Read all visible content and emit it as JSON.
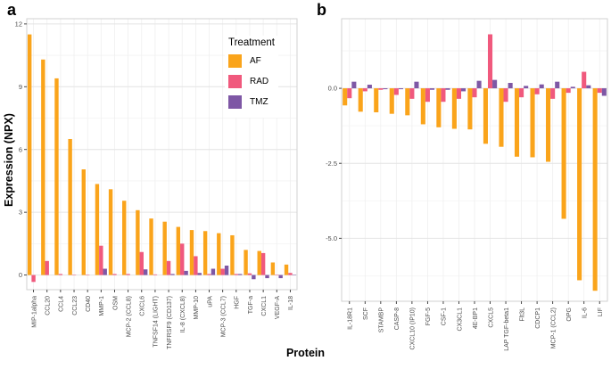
{
  "figure": {
    "panel_a_label": "a",
    "panel_b_label": "b",
    "y_axis_title": "Expression (NPX)",
    "x_axis_title": "Protein"
  },
  "legend": {
    "title": "Treatment",
    "items": [
      {
        "label": "AF",
        "color": "#FAA41B"
      },
      {
        "label": "RAD",
        "color": "#F0597D"
      },
      {
        "label": "TMZ",
        "color": "#7E57A5"
      }
    ]
  },
  "chart_data": [
    {
      "type": "bar",
      "panel": "a",
      "title": "",
      "xlabel": "Protein",
      "ylabel": "Expression (NPX)",
      "ylim": [
        -0.7,
        12.25
      ],
      "yticks": [
        0,
        3,
        6,
        9,
        12
      ],
      "ytick_labels": [
        "0",
        "3",
        "6",
        "9",
        "12"
      ],
      "grid": true,
      "legend_position": "inside-top-right",
      "categories": [
        "MIP-1alpha",
        "CCL20",
        "CCL4",
        "CCL23",
        "CD40",
        "MMP-1",
        "OSM",
        "MCP-2 (CCL8)",
        "CXCL6",
        "TNFSF14 (LIGHT)",
        "TNFRSF9 (CD137)",
        "IL-8 (CXCL8)",
        "MMP-10",
        "uPA",
        "MCP-3 (CCL7)",
        "HGF",
        "TGF-a",
        "CXCL1",
        "VEGF-A",
        "IL-18"
      ],
      "series": [
        {
          "name": "AF",
          "color": "#FAA41B",
          "values": [
            11.5,
            10.3,
            9.4,
            6.5,
            5.05,
            4.35,
            4.1,
            3.55,
            3.1,
            2.7,
            2.55,
            2.3,
            2.15,
            2.1,
            2.0,
            1.9,
            1.2,
            1.15,
            0.6,
            0.5
          ]
        },
        {
          "name": "RAD",
          "color": "#F0597D",
          "values": [
            -0.33,
            0.67,
            0.05,
            0.02,
            0.02,
            1.4,
            0.05,
            0.05,
            1.1,
            0.03,
            0.67,
            1.5,
            0.9,
            0.05,
            0.3,
            0.05,
            0.08,
            1.05,
            0.02,
            0.1
          ]
        },
        {
          "name": "TMZ",
          "color": "#7E57A5",
          "values": [
            0,
            0,
            0,
            0,
            0,
            0.3,
            0,
            0,
            0.27,
            0,
            0.05,
            0.2,
            0.1,
            0.3,
            0.45,
            0.05,
            -0.2,
            -0.15,
            -0.15,
            0.02
          ]
        }
      ]
    },
    {
      "type": "bar",
      "panel": "b",
      "title": "",
      "xlabel": "Protein",
      "ylabel": "Expression (NPX)",
      "ylim": [
        -7.1,
        2.32
      ],
      "yticks": [
        0,
        -2.5,
        -5
      ],
      "ytick_labels": [
        "0.0",
        "-2.5",
        "-5.0"
      ],
      "grid": true,
      "legend_position": "none",
      "categories": [
        "IL-18R1",
        "SCF",
        "STAMBP",
        "CASP-8",
        "CXCL10 (IP10)",
        "FGF-5",
        "CSF-1",
        "CX3CL1",
        "4E-BP1",
        "CXCL5",
        "LAP TGF-beta1",
        "Flt3L",
        "CDCP1",
        "MCP-1 (CCL2)",
        "OPG",
        "IL-6",
        "LIF"
      ],
      "series": [
        {
          "name": "AF",
          "color": "#FAA41B",
          "values": [
            -0.57,
            -0.78,
            -0.8,
            -0.85,
            -0.9,
            -1.2,
            -1.3,
            -1.35,
            -1.37,
            -1.85,
            -1.95,
            -2.28,
            -2.3,
            -2.45,
            -4.35,
            -6.4,
            -6.75
          ]
        },
        {
          "name": "RAD",
          "color": "#F0597D",
          "values": [
            -0.33,
            -0.1,
            -0.05,
            -0.22,
            -0.35,
            -0.45,
            -0.45,
            -0.35,
            -0.3,
            1.8,
            -0.45,
            -0.3,
            -0.2,
            -0.35,
            -0.15,
            0.55,
            -0.15
          ]
        },
        {
          "name": "TMZ",
          "color": "#7E57A5",
          "values": [
            0.22,
            0.12,
            -0.03,
            -0.03,
            0.22,
            -0.05,
            -0.05,
            -0.1,
            0.25,
            0.28,
            0.18,
            0.08,
            0.13,
            0.22,
            0.05,
            0.1,
            -0.25
          ]
        }
      ]
    }
  ]
}
